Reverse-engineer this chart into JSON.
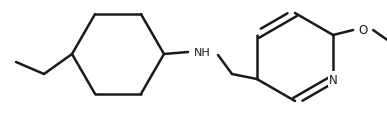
{
  "background_color": "#ffffff",
  "line_color": "#1a1a1a",
  "line_width": 1.8,
  "fig_width": 3.87,
  "fig_height": 1.16,
  "dpi": 100,
  "xlim": [
    0,
    387
  ],
  "ylim": [
    0,
    116
  ]
}
